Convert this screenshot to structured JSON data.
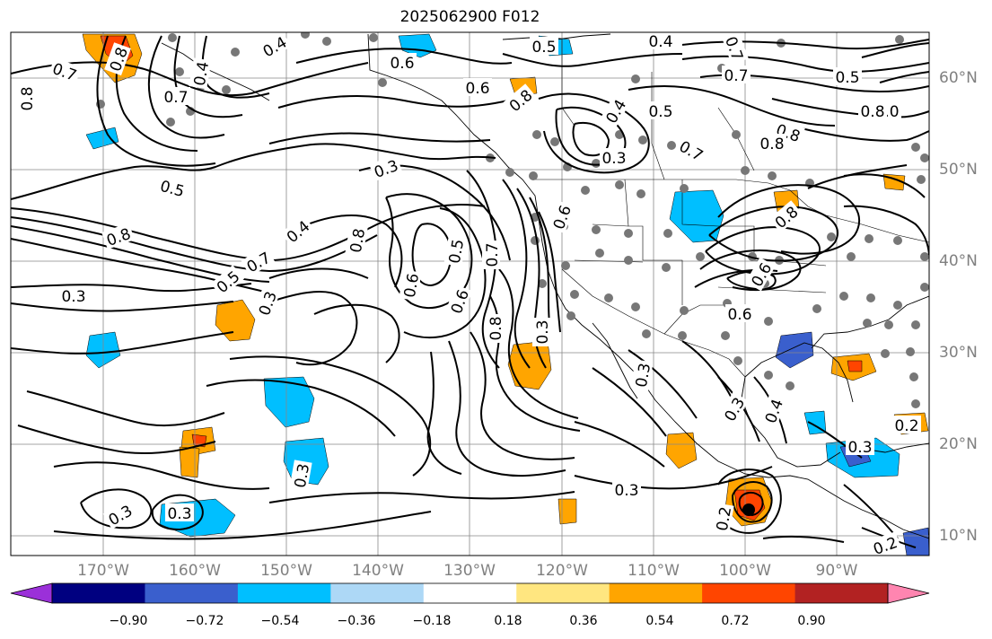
{
  "title": "2025062900 F012",
  "latitude_labels": [
    "60°N",
    "50°N",
    "40°N",
    "30°N",
    "20°N",
    "10°N"
  ],
  "longitude_labels": [
    "170°W",
    "160°W",
    "150°W",
    "140°W",
    "130°W",
    "120°W",
    "110°W",
    "100°W",
    "90°W"
  ],
  "contour_labels": [
    "0.4",
    "0.8",
    "0.6",
    "0.7",
    "0.4",
    "0.5",
    "0.6",
    "0.4",
    "0.7",
    "0.8",
    "0.4",
    "0.5",
    "0.7",
    "0.7",
    "0.8",
    "0.5",
    "0.8",
    "1.0",
    "0.3",
    "0.8",
    "0.5",
    "0.7",
    "0.8",
    "1.0",
    "0.6",
    "0.3",
    "0.4",
    "0.5",
    "0.7",
    "0.3",
    "0.8",
    "0.6",
    "0.6",
    "0.5",
    "0.7",
    "0.6",
    "0.8",
    "0.3",
    "0.3",
    "0.4",
    "0.3",
    "0.3",
    "0.3",
    "0.3",
    "0.2",
    "0.2",
    "0.3",
    "0.3",
    "0.3",
    "0.8",
    "0.6",
    "0.8",
    "0.2"
  ],
  "colorbar": {
    "ticks": [
      "−0.90",
      "−0.72",
      "−0.54",
      "−0.36",
      "−0.18",
      "0.18",
      "0.36",
      "0.54",
      "0.72",
      "0.90"
    ],
    "colors": [
      "#9b30d9",
      "#000080",
      "#3a5fcd",
      "#00bfff",
      "#add8f6",
      "#ffffff",
      "#ffe680",
      "#ffa500",
      "#ff4500",
      "#b22222",
      "#ff85b0"
    ]
  }
}
